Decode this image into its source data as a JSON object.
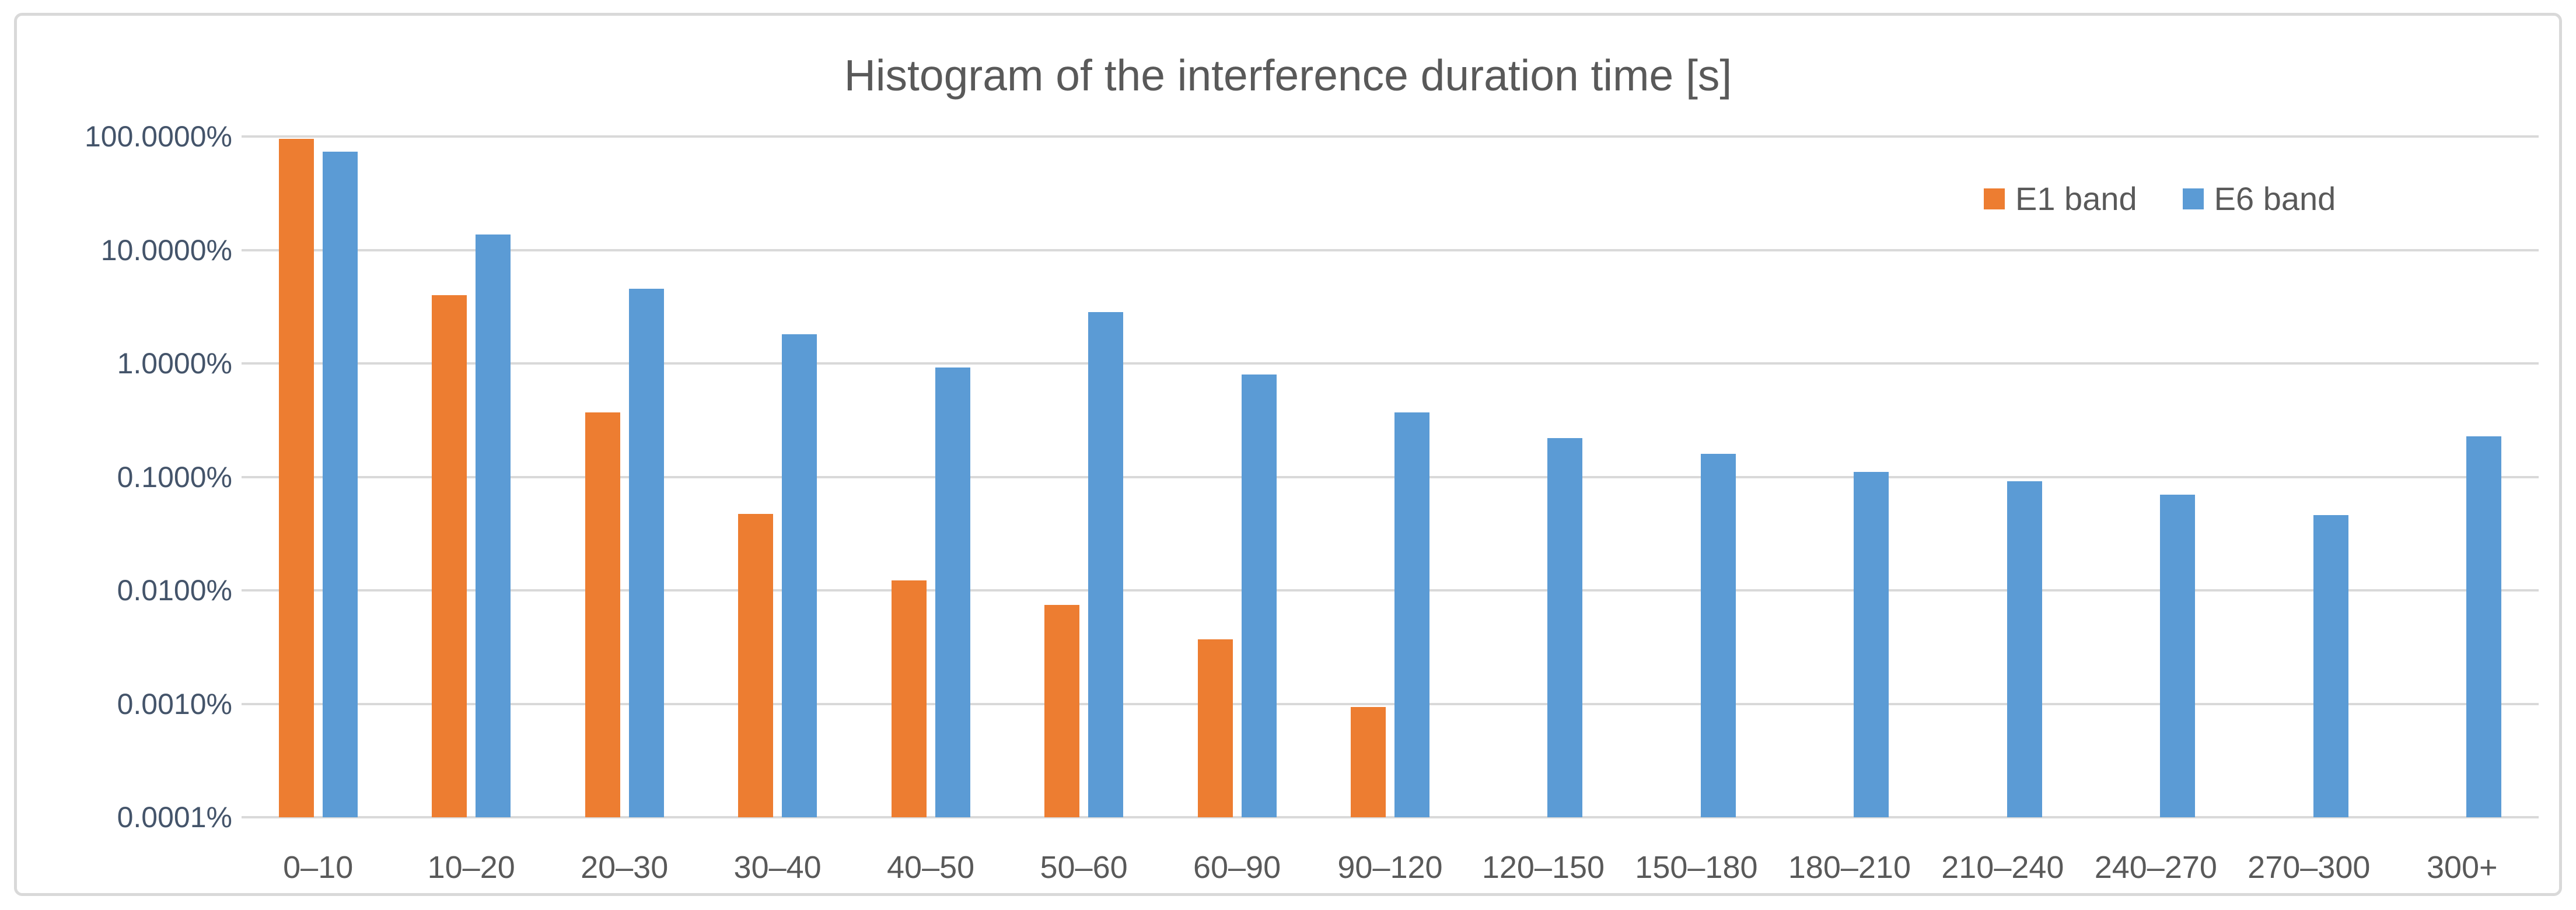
{
  "figure": {
    "title": "Histogram of the interference duration time [s]"
  },
  "legend": {
    "items": [
      {
        "label": "E1 band",
        "color": "#ED7D31"
      },
      {
        "label": "E6 band",
        "color": "#5B9BD5"
      }
    ]
  },
  "chart_data": {
    "type": "bar",
    "title": "Histogram of the interference duration time [s]",
    "categories": [
      "0–10",
      "10–20",
      "20–30",
      "30–40",
      "40–50",
      "50–60",
      "60–90",
      "90–120",
      "120–150",
      "150–180",
      "180–210",
      "210–240",
      "240–270",
      "270–300",
      "300+"
    ],
    "series": [
      {
        "name": "E1 band",
        "color": "#ED7D31",
        "values": [
          95.4,
          4.0,
          0.37,
          0.047,
          0.0123,
          0.0074,
          0.0037,
          0.00094,
          null,
          null,
          null,
          null,
          null,
          null,
          null
        ]
      },
      {
        "name": "E6 band",
        "color": "#5B9BD5",
        "values": [
          73.5,
          13.7,
          4.55,
          1.8,
          0.92,
          2.82,
          0.8,
          0.37,
          0.22,
          0.16,
          0.11,
          0.092,
          0.07,
          0.046,
          0.228
        ]
      }
    ],
    "y_axis": {
      "scale": "log",
      "unit": "%",
      "min": 0.0001,
      "max": 100,
      "tick_values": [
        100,
        10,
        1,
        0.1,
        0.01,
        0.001,
        0.0001
      ],
      "tick_labels": [
        "100.0000%",
        "10.0000%",
        "1.0000%",
        "0.1000%",
        "0.0100%",
        "0.0010%",
        "0.0001%"
      ]
    },
    "x_axis": {
      "label": ""
    },
    "grid": true,
    "legend_position": "top-right"
  },
  "colors": {
    "background": "#FFFFFF",
    "gridline": "#D9D9D9",
    "figure_border": "#D9D9D9",
    "title_text": "#595959",
    "x_tick_text": "#595959",
    "y_tick_text": "#44546A"
  }
}
